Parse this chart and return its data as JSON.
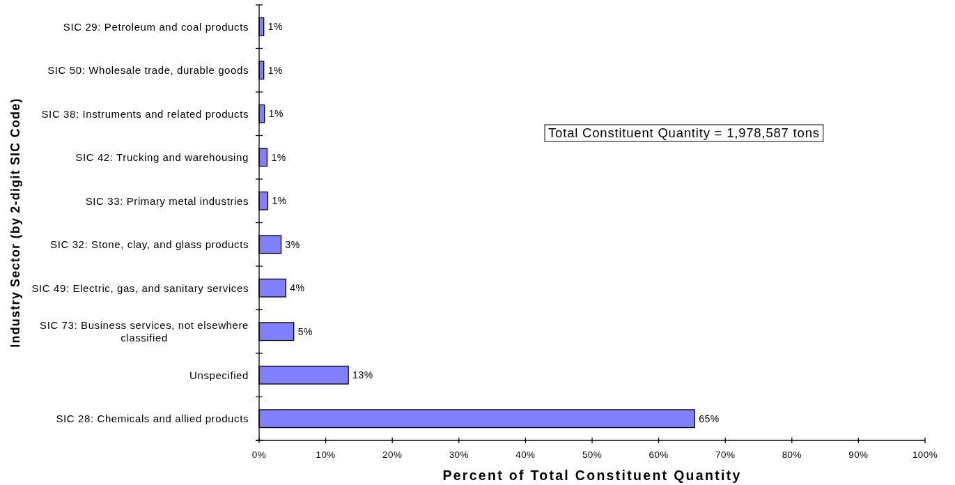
{
  "chart_data": {
    "type": "bar",
    "orientation": "horizontal",
    "xlabel": "Percent of Total Constituent Quantity",
    "ylabel": "Industry Sector (by 2-digit SIC Code)",
    "categories": [
      "SIC 29: Petroleum and coal products",
      "SIC 50: Wholesale trade, durable goods",
      "SIC 38: Instruments and related products",
      "SIC 42: Trucking and warehousing",
      "SIC 33: Primary metal industries",
      "SIC 32: Stone, clay, and glass products",
      "SIC 49: Electric, gas, and sanitary services",
      "SIC 73: Business services, not elsewhere classified",
      "Unspecified",
      "SIC 28: Chemicals and allied products"
    ],
    "values": [
      0.7,
      0.7,
      0.8,
      1.2,
      1.3,
      3.3,
      4.0,
      5.2,
      13.4,
      65.4
    ],
    "value_labels": [
      "1%",
      "1%",
      "1%",
      "1%",
      "1%",
      "3%",
      "4%",
      "5%",
      "13%",
      "65%"
    ],
    "color": "#8080ff",
    "xlim": [
      0,
      100
    ],
    "xticks": [
      {
        "value": 0,
        "label": "0%"
      },
      {
        "value": 10,
        "label": "10%"
      },
      {
        "value": 20,
        "label": "20%"
      },
      {
        "value": 30,
        "label": "30%"
      },
      {
        "value": 40,
        "label": "40%"
      },
      {
        "value": 50,
        "label": "50%"
      },
      {
        "value": 60,
        "label": "60%"
      },
      {
        "value": 70,
        "label": "70%"
      },
      {
        "value": 80,
        "label": "80%"
      },
      {
        "value": 90,
        "label": "90%"
      },
      {
        "value": 100,
        "label": "100%"
      }
    ],
    "annotations": [
      "Total Constituent Quantity = 1,978,587 tons"
    ]
  }
}
